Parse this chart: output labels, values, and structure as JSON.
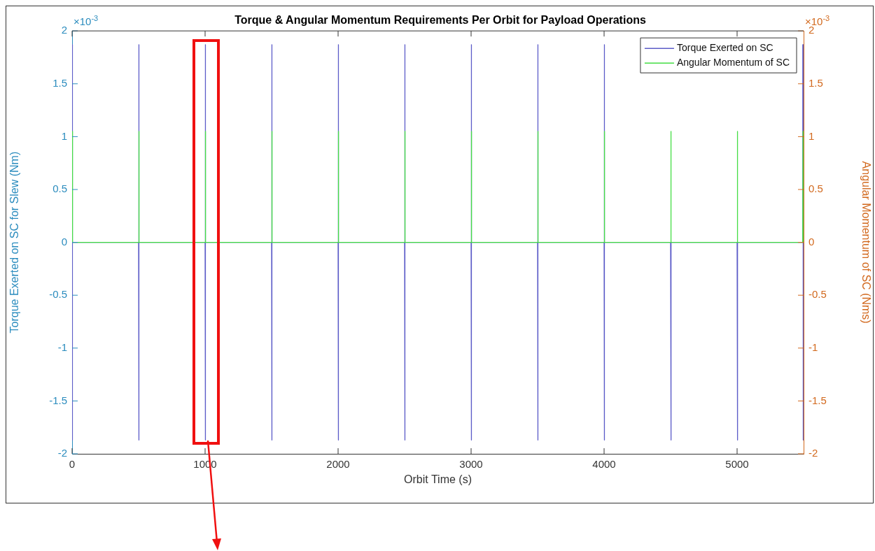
{
  "chart_data": {
    "type": "line",
    "title": "Torque & Angular Momentum Requirements Per Orbit for Payload Operations",
    "xlabel": "Orbit Time (s)",
    "ylabel": "Torque Exerted on SC for Slew (Nm)",
    "y2label": "Angular Momentum of SC (Nms)",
    "annotations": [
      "×10$^{-3}$",
      "×10$^{-3}$"
    ],
    "xlim": [
      0,
      5500
    ],
    "xticks": [
      0,
      1000,
      2000,
      3000,
      4000,
      5000
    ],
    "ylim": [
      -2,
      2
    ],
    "yticks": [
      -2,
      -1.5,
      -1,
      -0.5,
      0,
      0.5,
      1,
      1.5,
      2
    ],
    "y2lim": [
      -2,
      2
    ],
    "y2ticks": [
      -2,
      -1.5,
      -1,
      -0.5,
      0,
      0.5,
      1,
      1.5,
      2
    ],
    "grid": false,
    "legend": "top right",
    "marker": "none",
    "line_style": "solid",
    "series": [
      {
        "name": "Torque Exerted on SC",
        "color": "#5c5cc8",
        "x": [
          0,
          0,
          2,
          2,
          4,
          4,
          500,
          500,
          502,
          502,
          504,
          504,
          1000,
          1000,
          1002,
          1002,
          1004,
          1004,
          1500,
          1500,
          1502,
          1502,
          1504,
          1504,
          2000,
          2000,
          2002,
          2002,
          2004,
          2004,
          2500,
          2500,
          2502,
          2502,
          2504,
          2504,
          3000,
          3000,
          3002,
          3002,
          3004,
          3004,
          3500,
          3500,
          3502,
          3502,
          3504,
          3504,
          4000,
          4000,
          4002,
          4002,
          4004,
          4004,
          4500,
          4502,
          4504,
          4504,
          5000,
          5002,
          5004,
          5004,
          5494,
          5494,
          5496,
          5496,
          5498,
          5498
        ],
        "values": [
          0,
          1.87,
          1.87,
          -1.87,
          -1.87,
          0,
          0,
          1.87,
          1.87,
          -1.87,
          -1.87,
          0,
          0,
          1.87,
          1.87,
          -1.87,
          -1.87,
          0,
          0,
          1.87,
          1.87,
          -1.87,
          -1.87,
          0,
          0,
          1.87,
          1.87,
          -1.87,
          -1.87,
          0,
          0,
          1.87,
          1.87,
          -1.87,
          -1.87,
          0,
          0,
          1.87,
          1.87,
          -1.87,
          -1.87,
          0,
          0,
          1.87,
          1.87,
          -1.87,
          -1.87,
          0,
          0,
          1.87,
          1.87,
          -1.87,
          -1.87,
          0,
          0,
          -1.87,
          -1.87,
          0,
          0,
          -1.87,
          -1.87,
          0,
          0,
          1.87,
          1.87,
          -1.87,
          -1.87,
          0
        ]
      },
      {
        "name": "Angular Momentum of SC",
        "color": "#44dd44",
        "axis": "y2",
        "x": [
          0,
          2,
          4,
          500,
          502,
          504,
          1000,
          1002,
          1004,
          1500,
          1502,
          1504,
          2000,
          2002,
          2004,
          2500,
          2502,
          2504,
          3000,
          3002,
          3004,
          3500,
          3502,
          3504,
          4000,
          4002,
          4004,
          4500,
          4502,
          4504,
          5000,
          5002,
          5004,
          5494,
          5496,
          5498,
          5500
        ],
        "values": [
          0,
          1.05,
          0,
          0,
          1.05,
          0,
          0,
          1.05,
          0,
          0,
          1.05,
          0,
          0,
          1.05,
          0,
          0,
          1.05,
          0,
          0,
          1.05,
          0,
          0,
          1.05,
          0,
          0,
          1.05,
          0,
          0,
          1.05,
          0,
          0,
          1.05,
          0,
          0,
          1.05,
          0,
          0
        ]
      }
    ]
  }
}
